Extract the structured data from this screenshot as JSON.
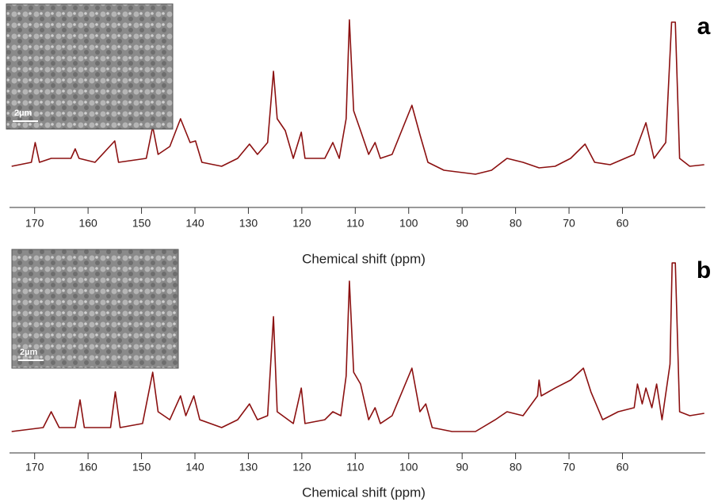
{
  "chart_data": [
    {
      "type": "line",
      "panel": "a",
      "xlabel": "Chemical shift (ppm)",
      "inset_scale": "2µm",
      "color": "#8b1010",
      "xlim": [
        174.7,
        44.5
      ],
      "ylim": [
        0,
        100
      ],
      "xticks": [
        170,
        160,
        150,
        140,
        130,
        120,
        110,
        100,
        90,
        80,
        70,
        60
      ],
      "x": [
        174.3,
        170.6,
        169.9,
        169.1,
        166.9,
        163.2,
        162.4,
        161.7,
        158.7,
        155.0,
        154.3,
        149.1,
        147.9,
        146.9,
        144.7,
        142.7,
        140.9,
        139.9,
        138.7,
        135.0,
        132.0,
        129.8,
        128.3,
        126.4,
        125.3,
        124.6,
        123.1,
        121.6,
        120.1,
        119.4,
        115.7,
        114.2,
        113.0,
        111.7,
        111.1,
        110.3,
        109.0,
        107.5,
        106.3,
        105.3,
        103.1,
        99.4,
        97.9,
        96.4,
        93.4,
        87.5,
        84.5,
        81.6,
        78.6,
        75.6,
        72.6,
        69.7,
        67.0,
        65.2,
        62.3,
        57.8,
        55.6,
        54.1,
        51.9,
        50.8,
        50.1,
        49.3,
        47.4,
        44.7
      ],
      "values": [
        7.5,
        10,
        22.5,
        10,
        12.5,
        12.5,
        18.5,
        12.5,
        10,
        23.5,
        10,
        12.5,
        32.5,
        15,
        20,
        37.5,
        22.5,
        23.5,
        10,
        7.5,
        12.5,
        21.5,
        15,
        22.5,
        67.5,
        37.5,
        30,
        12.5,
        29,
        12.5,
        12.5,
        22.5,
        12.5,
        37.5,
        100,
        42.5,
        30,
        15,
        22.5,
        12.5,
        15,
        46,
        27.5,
        10,
        5,
        2.5,
        5,
        12.5,
        10,
        6.5,
        7.5,
        12.5,
        21.5,
        10,
        8.5,
        15,
        35,
        12.5,
        22.5,
        98.5,
        98.5,
        12.5,
        7.5,
        8.5
      ]
    },
    {
      "type": "line",
      "panel": "b",
      "xlabel": "Chemical shift (ppm)",
      "inset_scale": "2µm",
      "color": "#8b1010",
      "xlim": [
        174.7,
        44.5
      ],
      "ylim": [
        0,
        100
      ],
      "xticks": [
        170,
        160,
        150,
        140,
        130,
        120,
        110,
        100,
        90,
        80,
        70,
        60
      ],
      "x": [
        174.3,
        168.4,
        166.9,
        165.4,
        162.4,
        161.5,
        160.7,
        155.8,
        154.9,
        154.0,
        149.8,
        147.9,
        146.9,
        144.7,
        142.7,
        141.7,
        140.2,
        139.1,
        135.0,
        132.0,
        129.8,
        128.3,
        126.4,
        125.3,
        124.6,
        121.6,
        120.1,
        119.4,
        115.7,
        114.2,
        112.7,
        111.7,
        111.1,
        110.3,
        109.0,
        107.5,
        106.3,
        105.3,
        103.1,
        99.4,
        97.9,
        96.8,
        95.6,
        91.9,
        87.5,
        83.8,
        81.6,
        78.6,
        75.9,
        75.6,
        75.2,
        72.6,
        69.7,
        67.3,
        65.9,
        63.7,
        60.8,
        57.8,
        57.2,
        56.3,
        55.6,
        54.5,
        53.6,
        52.6,
        51.1,
        50.7,
        50.1,
        49.3,
        47.4,
        44.7
      ],
      "values": [
        6.5,
        8.7,
        17.4,
        8.7,
        8.7,
        23.9,
        8.7,
        8.7,
        28.3,
        8.7,
        10.9,
        39.1,
        17.4,
        13,
        26.1,
        15.2,
        26.1,
        13,
        8.7,
        13,
        21.7,
        13,
        15.2,
        69.6,
        17.4,
        10.9,
        30.4,
        10.9,
        13,
        17.4,
        15.2,
        37,
        89.1,
        39.1,
        32.6,
        13,
        19.6,
        10.9,
        15.2,
        41.3,
        17.4,
        21.7,
        8.7,
        6.5,
        6.5,
        13,
        17.4,
        15.2,
        26.1,
        34.8,
        26.1,
        30.4,
        34.8,
        41.3,
        28.3,
        13,
        17.4,
        19.6,
        32.6,
        21.7,
        30.4,
        19.6,
        32.6,
        13,
        43.5,
        99.1,
        99.1,
        17.4,
        15.2,
        16.5
      ]
    }
  ]
}
